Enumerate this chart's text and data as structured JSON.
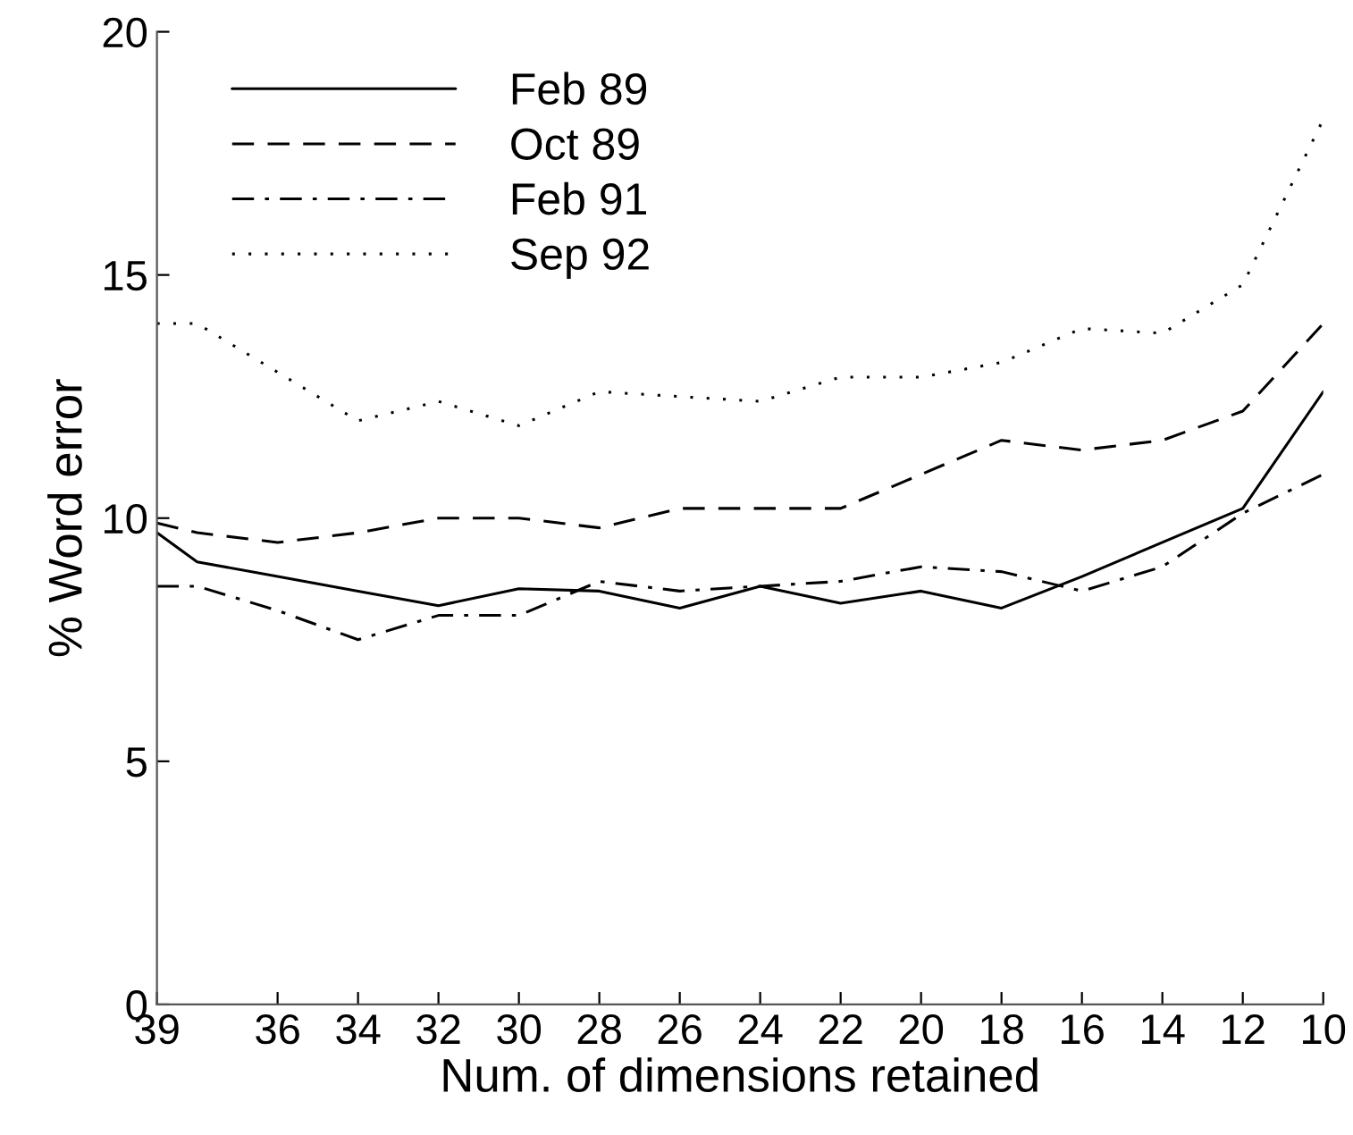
{
  "chart_data": {
    "type": "line",
    "xlabel": "Num. of dimensions retained",
    "ylabel": "% Word error",
    "x": [
      39,
      38,
      36,
      34,
      32,
      30,
      28,
      26,
      24,
      22,
      20,
      18,
      16,
      14,
      12,
      10
    ],
    "series": [
      {
        "name": "Feb 89",
        "color": "#000000",
        "line_style": "solid",
        "values": [
          9.7,
          9.1,
          8.8,
          8.5,
          8.2,
          8.55,
          8.5,
          8.15,
          8.6,
          8.25,
          8.5,
          8.15,
          8.8,
          9.5,
          10.2,
          12.6
        ]
      },
      {
        "name": "Oct 89",
        "color": "#000000",
        "line_style": "dashed",
        "values": [
          9.9,
          9.7,
          9.5,
          9.7,
          10.0,
          10.0,
          9.8,
          10.2,
          10.2,
          10.2,
          10.9,
          11.6,
          11.4,
          11.6,
          12.2,
          14.0
        ]
      },
      {
        "name": "Feb 91",
        "color": "#000000",
        "line_style": "dashdot",
        "values": [
          8.6,
          8.6,
          8.1,
          7.5,
          8.0,
          8.0,
          8.7,
          8.5,
          8.6,
          8.7,
          9.0,
          8.9,
          8.5,
          9.0,
          10.1,
          10.9
        ]
      },
      {
        "name": "Sep 92",
        "color": "#000000",
        "line_style": "dotted",
        "values": [
          14.0,
          14.0,
          13.0,
          12.0,
          12.4,
          11.9,
          12.6,
          12.5,
          12.4,
          12.9,
          12.9,
          13.2,
          13.9,
          13.8,
          14.8,
          18.2
        ]
      }
    ],
    "xlim": [
      39,
      10
    ],
    "xticks": [
      39,
      36,
      34,
      32,
      30,
      28,
      26,
      24,
      22,
      20,
      18,
      16,
      14,
      12,
      10
    ],
    "ylim": [
      0,
      20
    ],
    "yticks": [
      0,
      5,
      10,
      15,
      20
    ],
    "grid": false,
    "legend": "top left",
    "marker": "none"
  }
}
